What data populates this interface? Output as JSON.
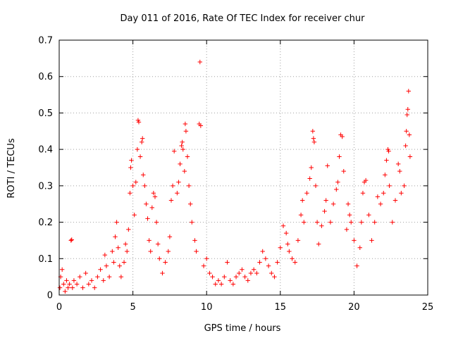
{
  "chart_data": {
    "type": "scatter",
    "title": "Day 011 of 2016, Rate Of TEC Index for receiver chur",
    "xlabel": "GPS time / hours",
    "ylabel": "ROTI / TECUs",
    "xlim": [
      0,
      25
    ],
    "ylim": [
      0,
      0.7
    ],
    "xticks": [
      0,
      5,
      10,
      15,
      20,
      25
    ],
    "xtick_labels": [
      "0",
      "5",
      "10",
      "15",
      "20",
      "25"
    ],
    "yticks": [
      0,
      0.1,
      0.2,
      0.3,
      0.4,
      0.5,
      0.6,
      0.7
    ],
    "ytick_labels": [
      "0",
      "0.1",
      "0.2",
      "0.3",
      "0.4",
      "0.5",
      "0.6",
      "0.7"
    ],
    "grid": true,
    "marker": "plus",
    "colors": {
      "series": "#ff0000",
      "grid": "#a0a0a0",
      "axis": "#000000"
    },
    "series": [
      {
        "name": "ROTI",
        "points": [
          [
            0.05,
            0.02
          ],
          [
            0.1,
            0.05
          ],
          [
            0.2,
            0.07
          ],
          [
            0.3,
            0.03
          ],
          [
            0.4,
            0.01
          ],
          [
            0.5,
            0.04
          ],
          [
            0.6,
            0.02
          ],
          [
            0.7,
            0.03
          ],
          [
            0.8,
            0.15
          ],
          [
            0.85,
            0.152
          ],
          [
            0.9,
            0.02
          ],
          [
            1.0,
            0.04
          ],
          [
            1.2,
            0.03
          ],
          [
            1.4,
            0.05
          ],
          [
            1.6,
            0.02
          ],
          [
            1.8,
            0.06
          ],
          [
            2.0,
            0.03
          ],
          [
            2.2,
            0.04
          ],
          [
            2.4,
            0.02
          ],
          [
            2.6,
            0.05
          ],
          [
            2.8,
            0.07
          ],
          [
            3.0,
            0.04
          ],
          [
            3.1,
            0.11
          ],
          [
            3.2,
            0.08
          ],
          [
            3.4,
            0.05
          ],
          [
            3.6,
            0.12
          ],
          [
            3.7,
            0.09
          ],
          [
            3.8,
            0.16
          ],
          [
            3.9,
            0.2
          ],
          [
            4.0,
            0.13
          ],
          [
            4.1,
            0.08
          ],
          [
            4.2,
            0.05
          ],
          [
            4.4,
            0.09
          ],
          [
            4.5,
            0.14
          ],
          [
            4.6,
            0.12
          ],
          [
            4.7,
            0.18
          ],
          [
            4.8,
            0.28
          ],
          [
            4.85,
            0.35
          ],
          [
            4.9,
            0.37
          ],
          [
            5.0,
            0.3
          ],
          [
            5.1,
            0.22
          ],
          [
            5.2,
            0.31
          ],
          [
            5.3,
            0.4
          ],
          [
            5.35,
            0.48
          ],
          [
            5.4,
            0.475
          ],
          [
            5.5,
            0.38
          ],
          [
            5.6,
            0.42
          ],
          [
            5.65,
            0.43
          ],
          [
            5.7,
            0.33
          ],
          [
            5.8,
            0.3
          ],
          [
            5.9,
            0.25
          ],
          [
            6.0,
            0.21
          ],
          [
            6.1,
            0.15
          ],
          [
            6.2,
            0.12
          ],
          [
            6.3,
            0.24
          ],
          [
            6.4,
            0.28
          ],
          [
            6.5,
            0.27
          ],
          [
            6.6,
            0.2
          ],
          [
            6.7,
            0.14
          ],
          [
            6.8,
            0.1
          ],
          [
            7.0,
            0.06
          ],
          [
            7.2,
            0.09
          ],
          [
            7.4,
            0.12
          ],
          [
            7.5,
            0.16
          ],
          [
            7.6,
            0.26
          ],
          [
            7.7,
            0.3
          ],
          [
            7.8,
            0.395
          ],
          [
            8.0,
            0.28
          ],
          [
            8.1,
            0.31
          ],
          [
            8.2,
            0.36
          ],
          [
            8.3,
            0.41
          ],
          [
            8.35,
            0.42
          ],
          [
            8.4,
            0.4
          ],
          [
            8.5,
            0.34
          ],
          [
            8.55,
            0.47
          ],
          [
            8.6,
            0.45
          ],
          [
            8.7,
            0.38
          ],
          [
            8.8,
            0.3
          ],
          [
            8.9,
            0.25
          ],
          [
            9.0,
            0.2
          ],
          [
            9.2,
            0.15
          ],
          [
            9.3,
            0.12
          ],
          [
            9.5,
            0.47
          ],
          [
            9.55,
            0.64
          ],
          [
            9.6,
            0.465
          ],
          [
            9.8,
            0.08
          ],
          [
            10.0,
            0.1
          ],
          [
            10.2,
            0.06
          ],
          [
            10.4,
            0.05
          ],
          [
            10.6,
            0.03
          ],
          [
            10.8,
            0.04
          ],
          [
            11.0,
            0.03
          ],
          [
            11.2,
            0.05
          ],
          [
            11.4,
            0.09
          ],
          [
            11.6,
            0.04
          ],
          [
            11.8,
            0.03
          ],
          [
            12.0,
            0.05
          ],
          [
            12.2,
            0.06
          ],
          [
            12.4,
            0.07
          ],
          [
            12.6,
            0.05
          ],
          [
            12.8,
            0.04
          ],
          [
            13.0,
            0.06
          ],
          [
            13.2,
            0.07
          ],
          [
            13.4,
            0.06
          ],
          [
            13.6,
            0.09
          ],
          [
            13.8,
            0.12
          ],
          [
            14.0,
            0.1
          ],
          [
            14.2,
            0.08
          ],
          [
            14.4,
            0.06
          ],
          [
            14.6,
            0.05
          ],
          [
            14.8,
            0.09
          ],
          [
            15.0,
            0.13
          ],
          [
            15.2,
            0.19
          ],
          [
            15.4,
            0.17
          ],
          [
            15.5,
            0.14
          ],
          [
            15.6,
            0.12
          ],
          [
            15.8,
            0.1
          ],
          [
            16.0,
            0.09
          ],
          [
            16.2,
            0.15
          ],
          [
            16.4,
            0.22
          ],
          [
            16.5,
            0.26
          ],
          [
            16.6,
            0.2
          ],
          [
            16.8,
            0.28
          ],
          [
            17.0,
            0.32
          ],
          [
            17.1,
            0.35
          ],
          [
            17.2,
            0.45
          ],
          [
            17.25,
            0.43
          ],
          [
            17.3,
            0.42
          ],
          [
            17.4,
            0.3
          ],
          [
            17.5,
            0.2
          ],
          [
            17.6,
            0.14
          ],
          [
            17.8,
            0.19
          ],
          [
            18.0,
            0.23
          ],
          [
            18.1,
            0.26
          ],
          [
            18.2,
            0.355
          ],
          [
            18.4,
            0.2
          ],
          [
            18.6,
            0.25
          ],
          [
            18.8,
            0.29
          ],
          [
            18.9,
            0.31
          ],
          [
            19.0,
            0.38
          ],
          [
            19.1,
            0.44
          ],
          [
            19.2,
            0.435
          ],
          [
            19.3,
            0.34
          ],
          [
            19.5,
            0.18
          ],
          [
            19.6,
            0.25
          ],
          [
            19.7,
            0.22
          ],
          [
            19.8,
            0.2
          ],
          [
            20.0,
            0.15
          ],
          [
            20.2,
            0.08
          ],
          [
            20.4,
            0.13
          ],
          [
            20.5,
            0.2
          ],
          [
            20.6,
            0.28
          ],
          [
            20.7,
            0.31
          ],
          [
            20.8,
            0.315
          ],
          [
            21.0,
            0.22
          ],
          [
            21.2,
            0.15
          ],
          [
            21.4,
            0.2
          ],
          [
            21.6,
            0.27
          ],
          [
            21.8,
            0.25
          ],
          [
            22.0,
            0.28
          ],
          [
            22.1,
            0.33
          ],
          [
            22.2,
            0.37
          ],
          [
            22.3,
            0.4
          ],
          [
            22.35,
            0.395
          ],
          [
            22.4,
            0.3
          ],
          [
            22.6,
            0.2
          ],
          [
            22.8,
            0.26
          ],
          [
            23.0,
            0.36
          ],
          [
            23.1,
            0.34
          ],
          [
            23.2,
            0.28
          ],
          [
            23.4,
            0.3
          ],
          [
            23.5,
            0.41
          ],
          [
            23.55,
            0.45
          ],
          [
            23.6,
            0.495
          ],
          [
            23.65,
            0.51
          ],
          [
            23.7,
            0.56
          ],
          [
            23.75,
            0.44
          ],
          [
            23.8,
            0.38
          ]
        ]
      }
    ]
  }
}
